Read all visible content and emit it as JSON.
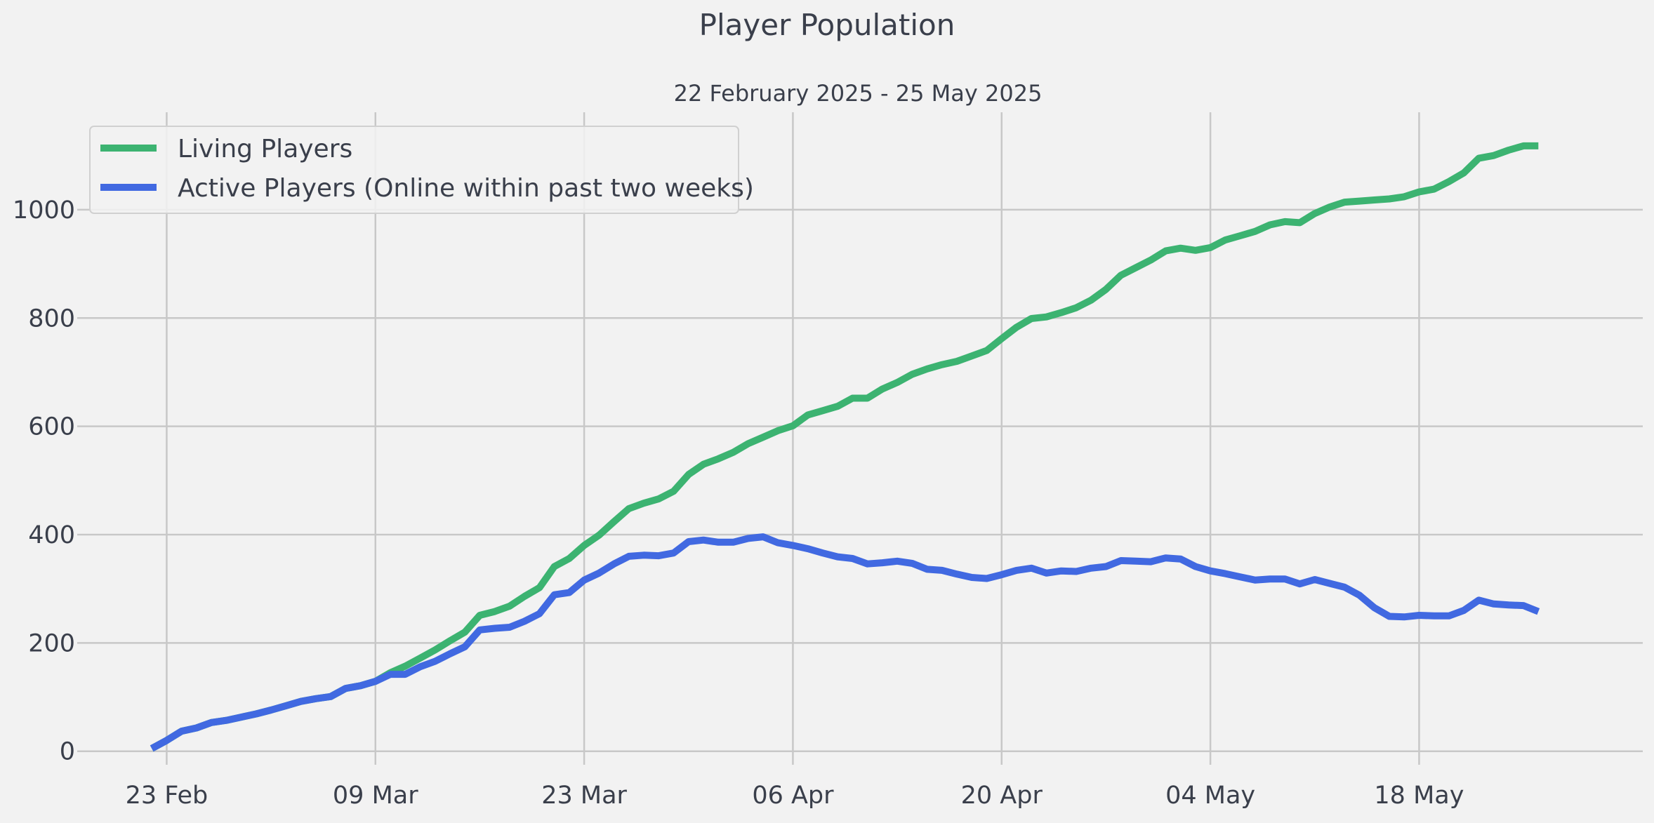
{
  "chart_data": {
    "type": "line",
    "title": "Player Population",
    "subtitle": "22 February 2025 - 25 May 2025",
    "xlabel": "",
    "ylabel": "",
    "x_start": "2025-02-22",
    "x_ticks": [
      {
        "date": "2025-02-23",
        "label": "23 Feb"
      },
      {
        "date": "2025-03-09",
        "label": "09 Mar"
      },
      {
        "date": "2025-03-23",
        "label": "23 Mar"
      },
      {
        "date": "2025-04-06",
        "label": "06 Apr"
      },
      {
        "date": "2025-04-20",
        "label": "20 Apr"
      },
      {
        "date": "2025-05-04",
        "label": "04 May"
      },
      {
        "date": "2025-05-18",
        "label": "18 May"
      }
    ],
    "y_ticks": [
      0,
      200,
      400,
      600,
      800,
      1000
    ],
    "xlim": [
      "2025-02-17",
      "2025-06-02"
    ],
    "ylim": [
      -25,
      1180
    ],
    "grid": true,
    "legend_position": "top-left",
    "series": [
      {
        "name": "Living Players",
        "color": "#3cb371",
        "values": [
          5,
          20,
          37,
          43,
          53,
          57,
          63,
          69,
          76,
          84,
          92,
          97,
          101,
          116,
          121,
          129,
          145,
          157,
          172,
          187,
          204,
          220,
          251,
          258,
          268,
          286,
          302,
          341,
          356,
          380,
          399,
          424,
          448,
          458,
          466,
          480,
          511,
          530,
          540,
          552,
          568,
          580,
          592,
          601,
          621,
          629,
          637,
          652,
          652,
          669,
          681,
          696,
          706,
          714,
          720,
          730,
          740,
          762,
          783,
          799,
          802,
          810,
          819,
          833,
          853,
          879,
          893,
          907,
          924,
          929,
          925,
          930,
          944,
          952,
          960,
          972,
          978,
          976,
          993,
          1005,
          1014,
          1016,
          1018,
          1020,
          1024,
          1033,
          1038,
          1052,
          1068,
          1095,
          1100,
          1110,
          1118,
          1118
        ],
        "values_source": "read off the chart, daily points"
      },
      {
        "name": "Active Players (Online within past two weeks)",
        "color": "#4169e1",
        "values": [
          5,
          20,
          37,
          43,
          53,
          57,
          63,
          69,
          76,
          84,
          92,
          97,
          101,
          116,
          121,
          129,
          142,
          142,
          156,
          166,
          180,
          193,
          224,
          227,
          229,
          240,
          254,
          289,
          293,
          316,
          329,
          346,
          360,
          362,
          361,
          366,
          387,
          390,
          386,
          386,
          393,
          396,
          385,
          380,
          374,
          366,
          359,
          356,
          346,
          348,
          351,
          347,
          336,
          334,
          327,
          321,
          319,
          326,
          334,
          338,
          329,
          333,
          332,
          338,
          341,
          352,
          351,
          350,
          357,
          355,
          341,
          333,
          328,
          322,
          316,
          318,
          318,
          309,
          317,
          310,
          303,
          288,
          265,
          249,
          248,
          251,
          250,
          250,
          260,
          279,
          272,
          270,
          269,
          258
        ],
        "values_source": "read off the chart, daily points"
      }
    ]
  }
}
